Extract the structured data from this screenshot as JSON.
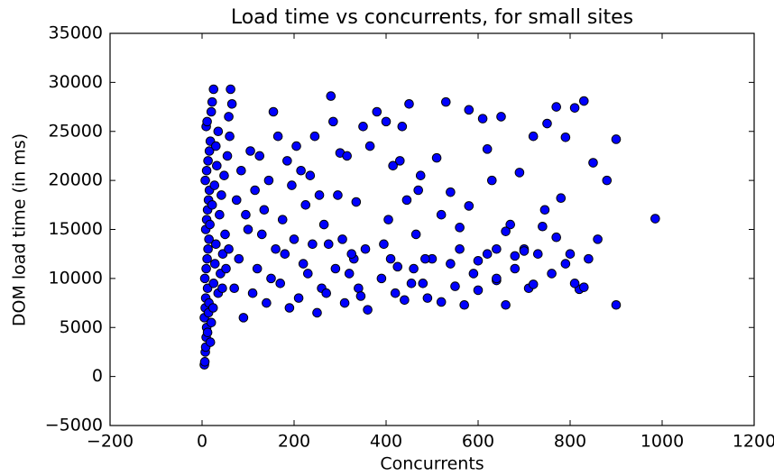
{
  "chart_data": {
    "type": "scatter",
    "title": "Load time vs concurrents, for small sites",
    "x_label": "Concurrents",
    "y_label": "DOM load time (in ms)",
    "color": "#0000ff",
    "edge_color": "#000000",
    "xlim": [
      -200,
      1200
    ],
    "ylim": [
      -5000,
      35000
    ],
    "xticks": [
      {
        "value": -200,
        "label": "−200"
      },
      0,
      200,
      400,
      600,
      800,
      1000,
      1200
    ],
    "yticks": [
      {
        "value": -5000,
        "label": "−5000"
      },
      0,
      5000,
      10000,
      15000,
      20000,
      25000,
      30000,
      35000
    ],
    "x": [
      5,
      6,
      7,
      8,
      9,
      10,
      5,
      7,
      8,
      12,
      6,
      9,
      11,
      13,
      15,
      8,
      10,
      12,
      14,
      16,
      7,
      10,
      13,
      16,
      18,
      9,
      11,
      20,
      22,
      25,
      18,
      20,
      15,
      25,
      28,
      30,
      17,
      22,
      27,
      32,
      35,
      40,
      45,
      50,
      38,
      42,
      48,
      55,
      60,
      58,
      62,
      65,
      30,
      35,
      12,
      14,
      24,
      44,
      52,
      58,
      70,
      80,
      90,
      100,
      110,
      120,
      130,
      140,
      150,
      160,
      75,
      85,
      95,
      105,
      115,
      125,
      135,
      145,
      155,
      165,
      170,
      180,
      190,
      200,
      210,
      220,
      230,
      240,
      250,
      260,
      175,
      185,
      195,
      205,
      215,
      225,
      235,
      245,
      255,
      265,
      270,
      280,
      290,
      300,
      310,
      320,
      330,
      340,
      350,
      360,
      275,
      285,
      295,
      305,
      315,
      325,
      335,
      345,
      355,
      365,
      380,
      390,
      400,
      410,
      420,
      430,
      440,
      450,
      460,
      470,
      480,
      490,
      500,
      510,
      520,
      530,
      540,
      550,
      560,
      570,
      580,
      590,
      600,
      610,
      620,
      630,
      640,
      650,
      660,
      670,
      680,
      690,
      700,
      710,
      720,
      730,
      740,
      750,
      760,
      770,
      780,
      790,
      800,
      810,
      820,
      830,
      840,
      850,
      860,
      880,
      395,
      405,
      415,
      425,
      435,
      445,
      455,
      465,
      475,
      485,
      520,
      540,
      560,
      580,
      600,
      620,
      640,
      660,
      700,
      720,
      745,
      770,
      790,
      810,
      830,
      900,
      900,
      985,
      640,
      680
    ],
    "y": [
      1200,
      1500,
      2500,
      3000,
      4000,
      5000,
      6000,
      7000,
      8000,
      9000,
      10000,
      11000,
      12000,
      13000,
      14000,
      15000,
      16000,
      17000,
      18000,
      19000,
      20000,
      21000,
      22000,
      23000,
      24000,
      25500,
      26000,
      27000,
      28000,
      29300,
      3500,
      5500,
      7500,
      9500,
      11500,
      13500,
      15500,
      17500,
      19500,
      21500,
      8500,
      10500,
      12500,
      14500,
      16500,
      18500,
      20500,
      22500,
      24500,
      26500,
      29300,
      27800,
      23500,
      25000,
      4500,
      6500,
      7000,
      9000,
      11000,
      13000,
      9000,
      12000,
      6000,
      15000,
      8500,
      11000,
      14500,
      7500,
      10000,
      13000,
      18000,
      21000,
      16500,
      23000,
      19000,
      22500,
      17000,
      20000,
      27000,
      24500,
      9500,
      12500,
      7000,
      14000,
      8000,
      11500,
      10500,
      13500,
      6500,
      9000,
      16000,
      22000,
      19500,
      23500,
      21000,
      17500,
      20500,
      24500,
      18500,
      15500,
      8500,
      28600,
      11000,
      22800,
      7500,
      10500,
      12000,
      9000,
      25500,
      6800,
      13500,
      26000,
      18500,
      14000,
      22500,
      12500,
      17800,
      8200,
      13000,
      23500,
      27000,
      10000,
      26000,
      12000,
      8500,
      22000,
      7800,
      27800,
      11000,
      19000,
      9500,
      8000,
      12000,
      22300,
      7600,
      28000,
      11500,
      9200,
      13000,
      7300,
      27200,
      10500,
      8800,
      26300,
      12500,
      20000,
      9800,
      26500,
      7300,
      15500,
      11000,
      20800,
      13000,
      9000,
      24500,
      12500,
      15300,
      25800,
      10500,
      27500,
      18200,
      24400,
      12500,
      27400,
      8900,
      28100,
      12000,
      21800,
      14000,
      20000,
      13500,
      16000,
      21500,
      11200,
      25500,
      18000,
      9500,
      14500,
      20500,
      12000,
      16500,
      18800,
      15200,
      17400,
      11800,
      23200,
      10000,
      14800,
      12800,
      9400,
      17000,
      14200,
      11500,
      9500,
      9100,
      7300,
      24200,
      16100,
      13000,
      12300
    ]
  }
}
